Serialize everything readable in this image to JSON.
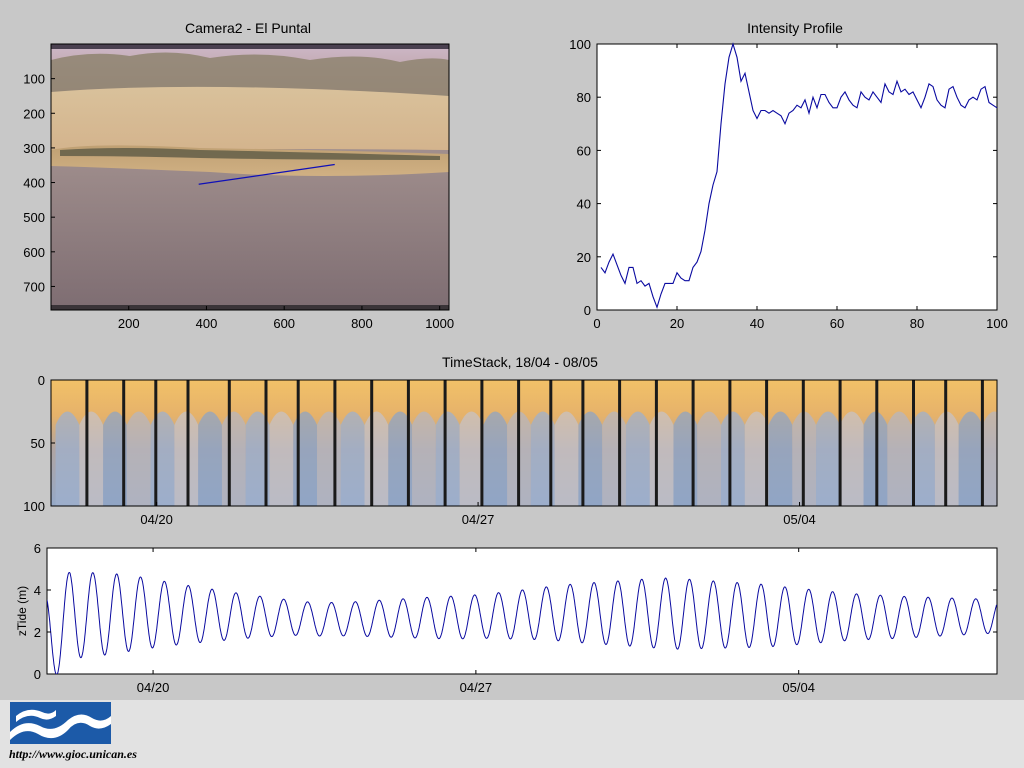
{
  "colors": {
    "figure_bg": "#c8c8c8",
    "axes_bg": "#ffffff",
    "line": "#0a0aa0",
    "footer_bg": "#e2e2e2",
    "logo_blue": "#1c5aa8"
  },
  "footer": {
    "url": "http://www.gioc.unican.es",
    "logo_icon": "wave-logo-icon"
  },
  "chart_data": [
    {
      "type": "image",
      "title": "Camera2 - El Puntal",
      "xlim": [
        0,
        1024
      ],
      "ylim": [
        768,
        0
      ],
      "xticks": [
        200,
        400,
        600,
        800,
        1000
      ],
      "yticks": [
        100,
        200,
        300,
        400,
        500,
        600,
        700
      ],
      "profile_line": {
        "x": [
          380,
          730
        ],
        "y": [
          405,
          348
        ]
      }
    },
    {
      "type": "line",
      "title": "Intensity Profile",
      "xlim": [
        0,
        100
      ],
      "ylim": [
        0,
        100
      ],
      "xticks": [
        0,
        20,
        40,
        60,
        80,
        100
      ],
      "yticks": [
        0,
        20,
        40,
        60,
        80,
        100
      ],
      "series": [
        {
          "x": [
            1,
            2,
            3,
            4,
            5,
            6,
            7,
            8,
            9,
            10,
            11,
            12,
            13,
            14,
            15,
            16,
            17,
            18,
            19,
            20,
            21,
            22,
            23,
            24,
            25,
            26,
            27,
            28,
            29,
            30,
            31,
            32,
            33,
            34,
            35,
            36,
            37,
            38,
            39,
            40,
            41,
            42,
            43,
            44,
            45,
            46,
            47,
            48,
            49,
            50,
            51,
            52,
            53,
            54,
            55,
            56,
            57,
            58,
            59,
            60,
            61,
            62,
            63,
            64,
            65,
            66,
            67,
            68,
            69,
            70,
            71,
            72,
            73,
            74,
            75,
            76,
            77,
            78,
            79,
            80,
            81,
            82,
            83,
            84,
            85,
            86,
            87,
            88,
            89,
            90,
            91,
            92,
            93,
            94,
            95,
            96,
            97,
            98,
            99,
            100
          ],
          "y": [
            16,
            14,
            18,
            21,
            17,
            13,
            10,
            16,
            16,
            10,
            11,
            9,
            10,
            5,
            1,
            6,
            10,
            10,
            10,
            14,
            12,
            11,
            11,
            16,
            18,
            22,
            30,
            40,
            47,
            52,
            70,
            85,
            95,
            100,
            95,
            86,
            89,
            82,
            75,
            72,
            75,
            75,
            74,
            75,
            74,
            73,
            70,
            74,
            75,
            77,
            76,
            79,
            74,
            80,
            76,
            81,
            81,
            78,
            76,
            76,
            80,
            82,
            79,
            77,
            76,
            82,
            80,
            79,
            82,
            80,
            78,
            85,
            82,
            81,
            86,
            82,
            83,
            81,
            82,
            79,
            76,
            80,
            85,
            84,
            79,
            77,
            76,
            83,
            84,
            80,
            77,
            76,
            79,
            80,
            79,
            83,
            84,
            78,
            77,
            76
          ]
        }
      ]
    },
    {
      "type": "heatmap",
      "title": "TimeStack, 18/04 - 08/05",
      "xlim": [
        0,
        20.6
      ],
      "ylim": [
        100,
        0
      ],
      "xticks": [
        "04/20",
        "04/27",
        "05/04"
      ],
      "yticks": [
        0,
        50,
        100
      ],
      "dark_bands": [
        0.75,
        1.55,
        2.25,
        2.95,
        3.85,
        4.65,
        5.35,
        6.15,
        6.95,
        7.75,
        8.55,
        9.35,
        10.15,
        10.85,
        11.55,
        12.35,
        13.15,
        13.95,
        14.75,
        15.55,
        16.35,
        17.15,
        17.95,
        18.75,
        19.45,
        20.25
      ]
    },
    {
      "type": "line",
      "title": "",
      "ylabel": "zTide (m)",
      "xlim": [
        0,
        20.6
      ],
      "ylim": [
        0,
        6
      ],
      "xticks": [
        "04/20",
        "04/27",
        "05/04"
      ],
      "yticks": [
        0,
        2,
        4,
        6
      ],
      "tide_period_days": 0.5175,
      "tide_phase": 0.33,
      "amplitudes": [
        [
          0.0,
          2.2
        ],
        [
          0.4,
          2.1
        ],
        [
          1.5,
          1.9
        ],
        [
          3.0,
          1.4
        ],
        [
          4.5,
          1.0
        ],
        [
          5.5,
          0.8
        ],
        [
          6.5,
          0.8
        ],
        [
          7.5,
          0.9
        ],
        [
          8.5,
          1.0
        ],
        [
          9.5,
          1.05
        ],
        [
          10.5,
          1.2
        ],
        [
          11.5,
          1.4
        ],
        [
          12.5,
          1.55
        ],
        [
          13.5,
          1.7
        ],
        [
          14.5,
          1.6
        ],
        [
          15.5,
          1.5
        ],
        [
          16.5,
          1.3
        ],
        [
          17.5,
          1.1
        ],
        [
          18.5,
          1.0
        ],
        [
          19.5,
          0.9
        ],
        [
          20.6,
          0.8
        ]
      ],
      "mean_level": [
        [
          0.0,
          1.6
        ],
        [
          0.5,
          2.8
        ],
        [
          2.0,
          2.9
        ],
        [
          5.0,
          2.7
        ],
        [
          6.0,
          2.6
        ],
        [
          9.0,
          2.7
        ],
        [
          11.0,
          2.9
        ],
        [
          13.0,
          2.9
        ],
        [
          16.0,
          2.75
        ],
        [
          18.5,
          2.7
        ],
        [
          20.6,
          2.75
        ]
      ]
    }
  ]
}
